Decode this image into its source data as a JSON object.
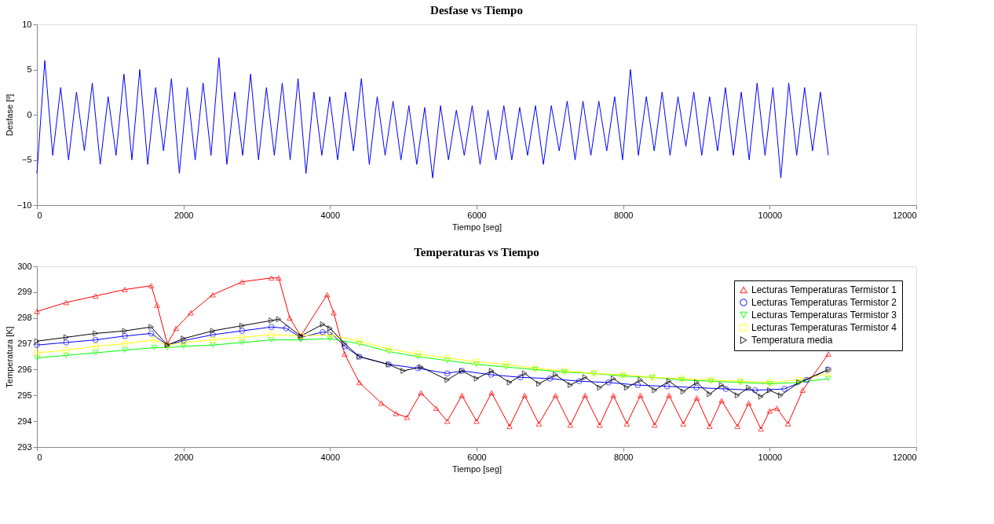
{
  "chart_data": [
    {
      "type": "line",
      "title": "Desfase vs Tiempo",
      "xlabel": "Tiempo [seg]",
      "ylabel": "Desfase [º]",
      "xlim": [
        0,
        12000
      ],
      "xticks": [
        0,
        2000,
        4000,
        6000,
        8000,
        10000,
        12000
      ],
      "ylim": [
        -10,
        10
      ],
      "yticks": [
        -10,
        -5,
        0,
        5,
        10
      ],
      "grid": false,
      "legend": false,
      "marker": "none",
      "series": [
        {
          "color": "#0000ff",
          "x": [
            0,
            108,
            216,
            324,
            432,
            540,
            648,
            756,
            864,
            972,
            1080,
            1188,
            1296,
            1404,
            1512,
            1620,
            1728,
            1836,
            1944,
            2052,
            2160,
            2268,
            2376,
            2484,
            2592,
            2700,
            2808,
            2916,
            3024,
            3132,
            3240,
            3348,
            3456,
            3564,
            3672,
            3780,
            3888,
            3996,
            4104,
            4212,
            4320,
            4428,
            4536,
            4644,
            4752,
            4860,
            4968,
            5076,
            5184,
            5292,
            5400,
            5508,
            5616,
            5724,
            5832,
            5940,
            6048,
            6156,
            6264,
            6372,
            6480,
            6588,
            6696,
            6804,
            6912,
            7020,
            7128,
            7236,
            7344,
            7452,
            7560,
            7668,
            7776,
            7884,
            7992,
            8100,
            8208,
            8316,
            8424,
            8532,
            8640,
            8748,
            8856,
            8964,
            9072,
            9180,
            9288,
            9396,
            9504,
            9612,
            9720,
            9828,
            9936,
            10044,
            10152,
            10260,
            10368,
            10476,
            10584,
            10692,
            10800
          ],
          "values": [
            -6.5,
            6.0,
            -4.5,
            3.0,
            -5.0,
            2.5,
            -4.0,
            3.5,
            -5.5,
            2.0,
            -4.5,
            4.5,
            -5.0,
            5.0,
            -5.5,
            3.0,
            -4.0,
            4.0,
            -6.5,
            3.0,
            -5.0,
            3.5,
            -4.5,
            6.3,
            -5.5,
            2.5,
            -4.5,
            4.5,
            -5.0,
            3.0,
            -4.5,
            3.5,
            -5.0,
            4.0,
            -6.5,
            2.5,
            -4.5,
            2.0,
            -5.0,
            2.5,
            -4.0,
            4.0,
            -5.5,
            2.0,
            -4.5,
            1.5,
            -5.0,
            1.0,
            -5.5,
            0.8,
            -7.0,
            1.0,
            -5.0,
            0.5,
            -4.5,
            1.0,
            -5.5,
            0.5,
            -5.0,
            1.0,
            -5.0,
            0.8,
            -4.5,
            1.0,
            -5.5,
            1.0,
            -4.0,
            1.5,
            -5.0,
            1.5,
            -4.5,
            1.5,
            -4.0,
            2.0,
            -5.0,
            5.0,
            -4.5,
            2.0,
            -4.0,
            2.5,
            -4.5,
            2.0,
            -3.5,
            2.5,
            -4.5,
            2.0,
            -4.0,
            3.0,
            -4.5,
            2.5,
            -5.0,
            3.5,
            -4.5,
            3.0,
            -7.0,
            3.5,
            -4.5,
            3.0,
            -4.0,
            2.5,
            -4.5
          ]
        }
      ]
    },
    {
      "type": "line",
      "title": "Temperaturas vs Tiempo",
      "xlabel": "Tiempo [seg]",
      "ylabel": "Temperatura [K]",
      "xlim": [
        0,
        12000
      ],
      "xticks": [
        0,
        2000,
        4000,
        6000,
        8000,
        10000,
        12000
      ],
      "ylim": [
        293,
        300
      ],
      "yticks": [
        293,
        294,
        295,
        296,
        297,
        298,
        299,
        300
      ],
      "grid": false,
      "legend": "top right",
      "series": [
        {
          "name": "Lecturas Temperaturas Termistor 1",
          "color": "#ff0000",
          "marker": "triangle-up",
          "x": [
            0,
            400,
            800,
            1200,
            1560,
            1640,
            1780,
            1900,
            2100,
            2400,
            2800,
            3200,
            3300,
            3450,
            3600,
            3960,
            4050,
            4200,
            4400,
            4700,
            4900,
            5050,
            5240,
            5450,
            5600,
            5800,
            6000,
            6205,
            6450,
            6656,
            6850,
            7077,
            7280,
            7480,
            7680,
            7867,
            8050,
            8236,
            8430,
            8626,
            8820,
            9005,
            9180,
            9344,
            9560,
            9713,
            9880,
            10000,
            10100,
            10250,
            10450,
            10800
          ],
          "values": [
            298.25,
            298.6,
            298.85,
            299.1,
            299.25,
            298.5,
            297.0,
            297.6,
            298.2,
            298.9,
            299.4,
            299.55,
            299.55,
            298.0,
            297.3,
            298.9,
            298.2,
            296.6,
            295.5,
            294.7,
            294.3,
            294.15,
            295.1,
            294.5,
            294.0,
            295.0,
            294.0,
            295.1,
            293.8,
            295.0,
            293.9,
            295.0,
            293.85,
            295.0,
            293.85,
            295.0,
            293.9,
            295.0,
            293.85,
            295.0,
            293.9,
            294.9,
            293.8,
            294.8,
            293.8,
            294.7,
            293.7,
            294.4,
            294.5,
            293.9,
            295.2,
            296.6
          ]
        },
        {
          "name": "Lecturas Temperaturas Termistor 2",
          "color": "#0000ff",
          "marker": "circle",
          "x": [
            0,
            400,
            800,
            1200,
            1560,
            1780,
            2000,
            2400,
            2800,
            3200,
            3400,
            3600,
            3900,
            4000,
            4200,
            4400,
            4800,
            5200,
            5600,
            5800,
            6200,
            6600,
            7000,
            7400,
            7800,
            8200,
            8600,
            9000,
            9400,
            9800,
            10200,
            10500,
            10800
          ],
          "values": [
            296.95,
            297.05,
            297.15,
            297.3,
            297.4,
            296.95,
            297.12,
            297.35,
            297.5,
            297.65,
            297.6,
            297.25,
            297.45,
            297.45,
            296.9,
            296.5,
            296.2,
            296.05,
            295.85,
            295.95,
            295.8,
            295.7,
            295.65,
            295.55,
            295.5,
            295.4,
            295.35,
            295.3,
            295.25,
            295.2,
            295.25,
            295.6,
            296.0
          ]
        },
        {
          "name": "Lecturas Temperaturas Termistor 3",
          "color": "#00ff00",
          "marker": "triangle-down",
          "x": [
            0,
            400,
            800,
            1200,
            1600,
            1780,
            2000,
            2400,
            2800,
            3200,
            3600,
            4000,
            4400,
            4800,
            5200,
            5600,
            6000,
            6400,
            6800,
            7200,
            7600,
            8000,
            8400,
            8800,
            9200,
            9600,
            10000,
            10400,
            10800
          ],
          "values": [
            296.45,
            296.55,
            296.65,
            296.75,
            296.85,
            296.85,
            296.9,
            296.95,
            297.05,
            297.15,
            297.15,
            297.2,
            297.0,
            296.7,
            296.5,
            296.35,
            296.2,
            296.1,
            296.0,
            295.9,
            295.85,
            295.75,
            295.7,
            295.6,
            295.55,
            295.5,
            295.45,
            295.5,
            295.65
          ]
        },
        {
          "name": "Lecturas Temperaturas Termistor 4",
          "color": "#ffff00",
          "marker": "square",
          "x": [
            0,
            400,
            800,
            1200,
            1600,
            1780,
            2000,
            2400,
            2800,
            3200,
            3600,
            4000,
            4400,
            4800,
            5200,
            5600,
            6000,
            6400,
            6800,
            7200,
            7600,
            8000,
            8400,
            8800,
            9200,
            9600,
            10000,
            10400,
            10800
          ],
          "values": [
            296.65,
            296.75,
            296.9,
            297.0,
            297.15,
            296.95,
            297.05,
            297.15,
            297.25,
            297.35,
            297.3,
            297.35,
            297.1,
            296.8,
            296.6,
            296.45,
            296.3,
            296.2,
            296.05,
            295.95,
            295.85,
            295.8,
            295.7,
            295.65,
            295.6,
            295.55,
            295.5,
            295.6,
            295.85
          ]
        },
        {
          "name": "Temperatura media",
          "color": "#000000",
          "marker": "triangle-right",
          "x": [
            0,
            400,
            800,
            1200,
            1560,
            1780,
            2000,
            2400,
            2800,
            3200,
            3300,
            3600,
            3900,
            4000,
            4200,
            4400,
            4800,
            5000,
            5240,
            5600,
            5800,
            6000,
            6205,
            6450,
            6656,
            6850,
            7077,
            7280,
            7480,
            7680,
            7867,
            8050,
            8236,
            8430,
            8626,
            8820,
            9005,
            9180,
            9344,
            9560,
            9713,
            9880,
            10000,
            10150,
            10400,
            10800
          ],
          "values": [
            297.1,
            297.25,
            297.4,
            297.5,
            297.65,
            296.95,
            297.2,
            297.5,
            297.7,
            297.9,
            297.95,
            297.3,
            297.75,
            297.6,
            297.0,
            296.5,
            296.2,
            295.95,
            296.1,
            295.6,
            295.95,
            295.65,
            295.95,
            295.5,
            295.85,
            295.45,
            295.8,
            295.4,
            295.7,
            295.3,
            295.65,
            295.3,
            295.6,
            295.2,
            295.55,
            295.15,
            295.5,
            295.05,
            295.4,
            295.0,
            295.3,
            294.95,
            295.2,
            295.0,
            295.5,
            296.0
          ]
        }
      ]
    }
  ]
}
